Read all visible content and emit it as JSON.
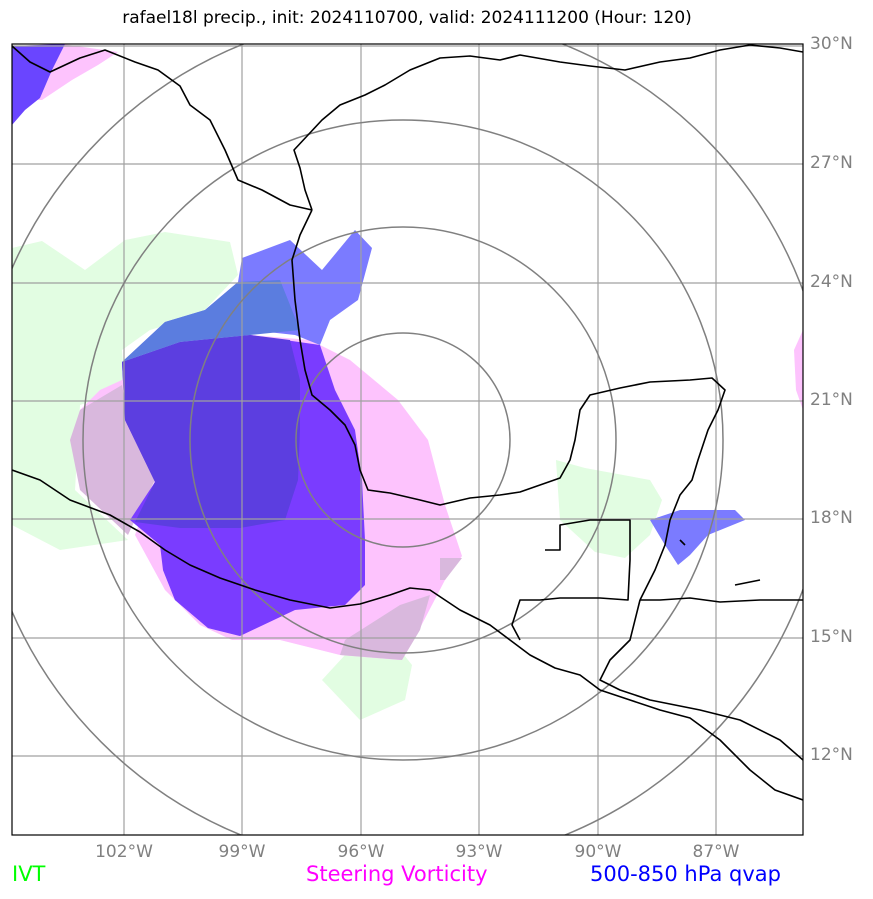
{
  "title": "rafael18l precip., init: 2024110700, valid: 2024111200 (Hour: 120)",
  "lat_labels": [
    "30°N",
    "27°N",
    "24°N",
    "21°N",
    "18°N",
    "15°N",
    "12°N"
  ],
  "lon_labels": [
    "102°W",
    "99°W",
    "96°W",
    "93°W",
    "90°W",
    "87°W"
  ],
  "legend": {
    "ivt": "IVT",
    "vorticity": "Steering Vorticity",
    "qvap": "500-850 hPa qvap"
  },
  "colors": {
    "ivt": "#00ff00",
    "vorticity": "#ff00ff",
    "qvap": "#0000ff",
    "gridline": "#a0a0a0",
    "range_ring": "#808080",
    "coastline": "#000000"
  },
  "map_extent": {
    "lon": [
      -104.8,
      -84.8
    ],
    "lat": [
      10.0,
      30.0
    ]
  }
}
